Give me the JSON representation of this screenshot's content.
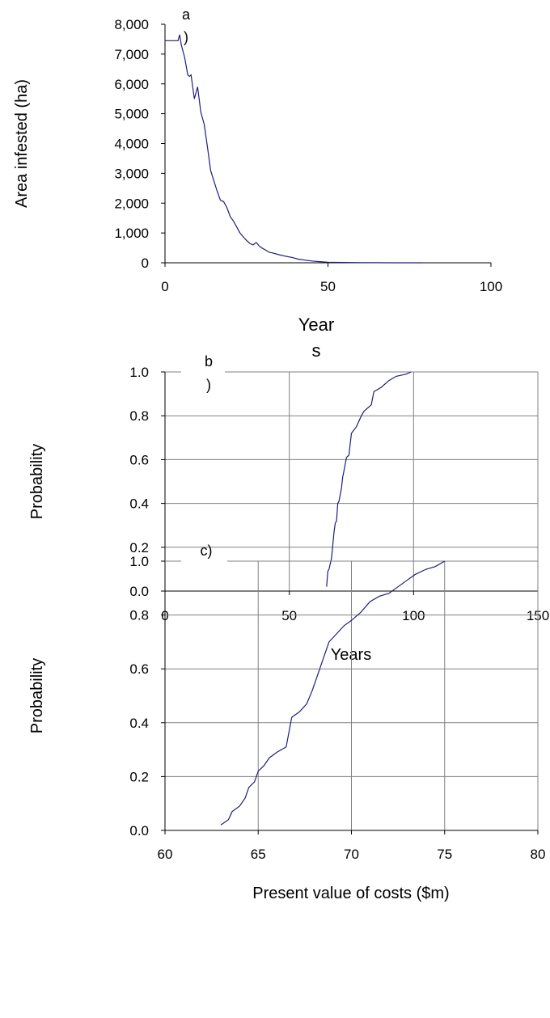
{
  "colors": {
    "series": "#1f1f7a",
    "axis": "#000000",
    "grid": "#808080",
    "background": "#ffffff"
  },
  "chart_data": [
    {
      "type": "line",
      "panel": "a",
      "panel_label": [
        "a",
        ")"
      ],
      "xlabel": [
        "Year",
        "s"
      ],
      "ylabel": "Area infested (ha)",
      "xlim": [
        0,
        100
      ],
      "ylim": [
        0,
        8000
      ],
      "grid": false,
      "xticks": [
        0,
        50,
        100
      ],
      "xtick_labels": [
        "0",
        "50",
        "100"
      ],
      "yticks": [
        0,
        1000,
        2000,
        3000,
        4000,
        5000,
        6000,
        7000,
        8000
      ],
      "ytick_labels": [
        "0",
        "1,000",
        "2,000",
        "3,000",
        "4,000",
        "5,000",
        "6,000",
        "7,000",
        "8,000"
      ],
      "series": [
        {
          "x": [
            0,
            1,
            3,
            4,
            4.5,
            5,
            5.5,
            6,
            7,
            7.5,
            8,
            9,
            10,
            11,
            12,
            13,
            14,
            15,
            16,
            17,
            18,
            19,
            20,
            21,
            22,
            23,
            24,
            25,
            26,
            27,
            28,
            29,
            30,
            31,
            32,
            33,
            35,
            37,
            39,
            41,
            43,
            45,
            47,
            50,
            55,
            60,
            65,
            70,
            79
          ],
          "y": [
            7450,
            7450,
            7450,
            7450,
            7650,
            7300,
            7100,
            6900,
            6300,
            6250,
            6300,
            5500,
            5900,
            5050,
            4650,
            3900,
            3100,
            2750,
            2400,
            2100,
            2050,
            1850,
            1550,
            1400,
            1200,
            1000,
            870,
            750,
            650,
            600,
            680,
            550,
            480,
            420,
            350,
            330,
            270,
            220,
            180,
            120,
            90,
            60,
            40,
            20,
            10,
            5,
            2,
            0,
            0
          ]
        }
      ]
    },
    {
      "type": "line",
      "panel": "b",
      "panel_label": [
        "b",
        ")"
      ],
      "xlabel": "Years",
      "ylabel": "Probability",
      "xlim": [
        0,
        150
      ],
      "ylim": [
        0,
        1
      ],
      "grid": true,
      "xticks": [
        0,
        50,
        100,
        150
      ],
      "xtick_labels": [
        "0",
        "50",
        "100",
        "150"
      ],
      "yticks": [
        0,
        0.2,
        0.4,
        0.6,
        0.8,
        1.0
      ],
      "ytick_labels": [
        "0.0",
        "0.2",
        "0.4",
        "0.6",
        "0.8",
        "1.0"
      ],
      "series": [
        {
          "x": [
            65,
            65.5,
            66,
            67,
            68,
            68.5,
            69,
            69.5,
            70,
            71,
            71.5,
            72,
            73,
            74,
            75,
            77,
            79,
            80,
            83,
            84,
            87,
            90,
            93,
            97,
            99
          ],
          "y": [
            0.02,
            0.09,
            0.1,
            0.15,
            0.27,
            0.31,
            0.32,
            0.4,
            0.41,
            0.47,
            0.52,
            0.55,
            0.61,
            0.62,
            0.72,
            0.75,
            0.8,
            0.82,
            0.85,
            0.91,
            0.93,
            0.96,
            0.98,
            0.99,
            1.0
          ]
        }
      ]
    },
    {
      "type": "line",
      "panel": "c",
      "panel_label": [
        "c)"
      ],
      "xlabel": "Present value of costs ($m)",
      "ylabel": "Probability",
      "xlim": [
        60,
        80
      ],
      "ylim": [
        0,
        1
      ],
      "grid": true,
      "xticks": [
        60,
        65,
        70,
        75,
        80
      ],
      "xtick_labels": [
        "60",
        "65",
        "70",
        "75",
        "80"
      ],
      "yticks": [
        0,
        0.2,
        0.4,
        0.6,
        0.8,
        1.0
      ],
      "ytick_labels": [
        "0.0",
        "0.2",
        "0.4",
        "0.6",
        "0.8",
        "1.0"
      ],
      "series": [
        {
          "x": [
            63.0,
            63.4,
            63.6,
            64.0,
            64.3,
            64.5,
            64.8,
            65.0,
            65.3,
            65.6,
            66.0,
            66.5,
            66.8,
            67.2,
            67.6,
            67.9,
            68.2,
            68.6,
            68.8,
            69.2,
            69.6,
            70.0,
            70.5,
            71.0,
            71.5,
            72.0,
            72.4,
            73.0,
            73.4,
            74.0,
            74.5,
            75.0
          ],
          "y": [
            0.02,
            0.04,
            0.07,
            0.09,
            0.12,
            0.16,
            0.18,
            0.22,
            0.24,
            0.27,
            0.29,
            0.31,
            0.42,
            0.44,
            0.47,
            0.52,
            0.58,
            0.66,
            0.7,
            0.73,
            0.76,
            0.78,
            0.81,
            0.85,
            0.87,
            0.88,
            0.9,
            0.93,
            0.95,
            0.97,
            0.98,
            1.0
          ]
        }
      ]
    }
  ]
}
